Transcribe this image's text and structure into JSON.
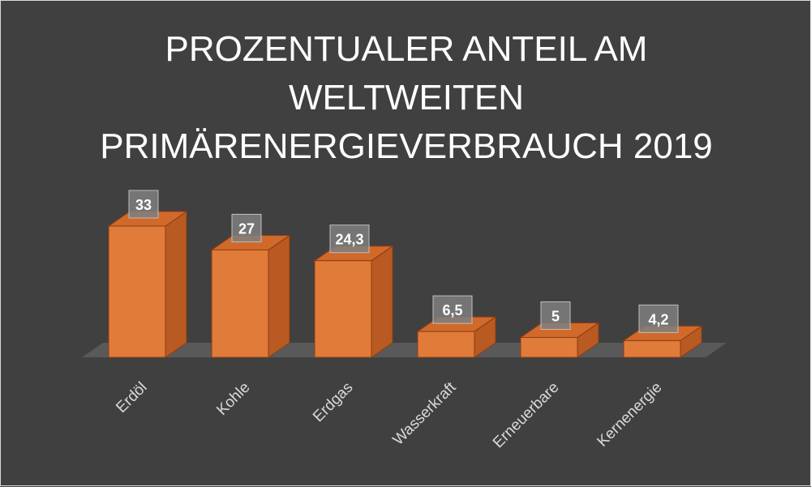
{
  "chart_data": {
    "type": "bar",
    "title_lines": [
      "PROZENTUALER ANTEIL AM",
      "WELTWEITEN",
      "PRIMÄRENERGIEVERBRAUCH 2019"
    ],
    "categories": [
      "Erdöl",
      "Kohle",
      "Erdgas",
      "Wasserkraft",
      "Erneuerbare",
      "Kernenergie"
    ],
    "values": [
      33,
      27,
      24.3,
      6.5,
      5,
      4.2
    ],
    "value_labels": [
      "33",
      "27",
      "24,3",
      "6,5",
      "5",
      "4,2"
    ],
    "xlabel": "",
    "ylabel": "",
    "grid": false,
    "legend": "none",
    "style": "3d-column"
  },
  "colors": {
    "background": "#404040",
    "bar_front": "#e07b39",
    "bar_top": "#d0692a",
    "bar_side": "#b85a21",
    "bar_edge": "#8c3d12",
    "floor": "#595959",
    "label_box": "#7f7f7f",
    "text": "#ffffff",
    "axis_text": "#d9d9d9"
  }
}
